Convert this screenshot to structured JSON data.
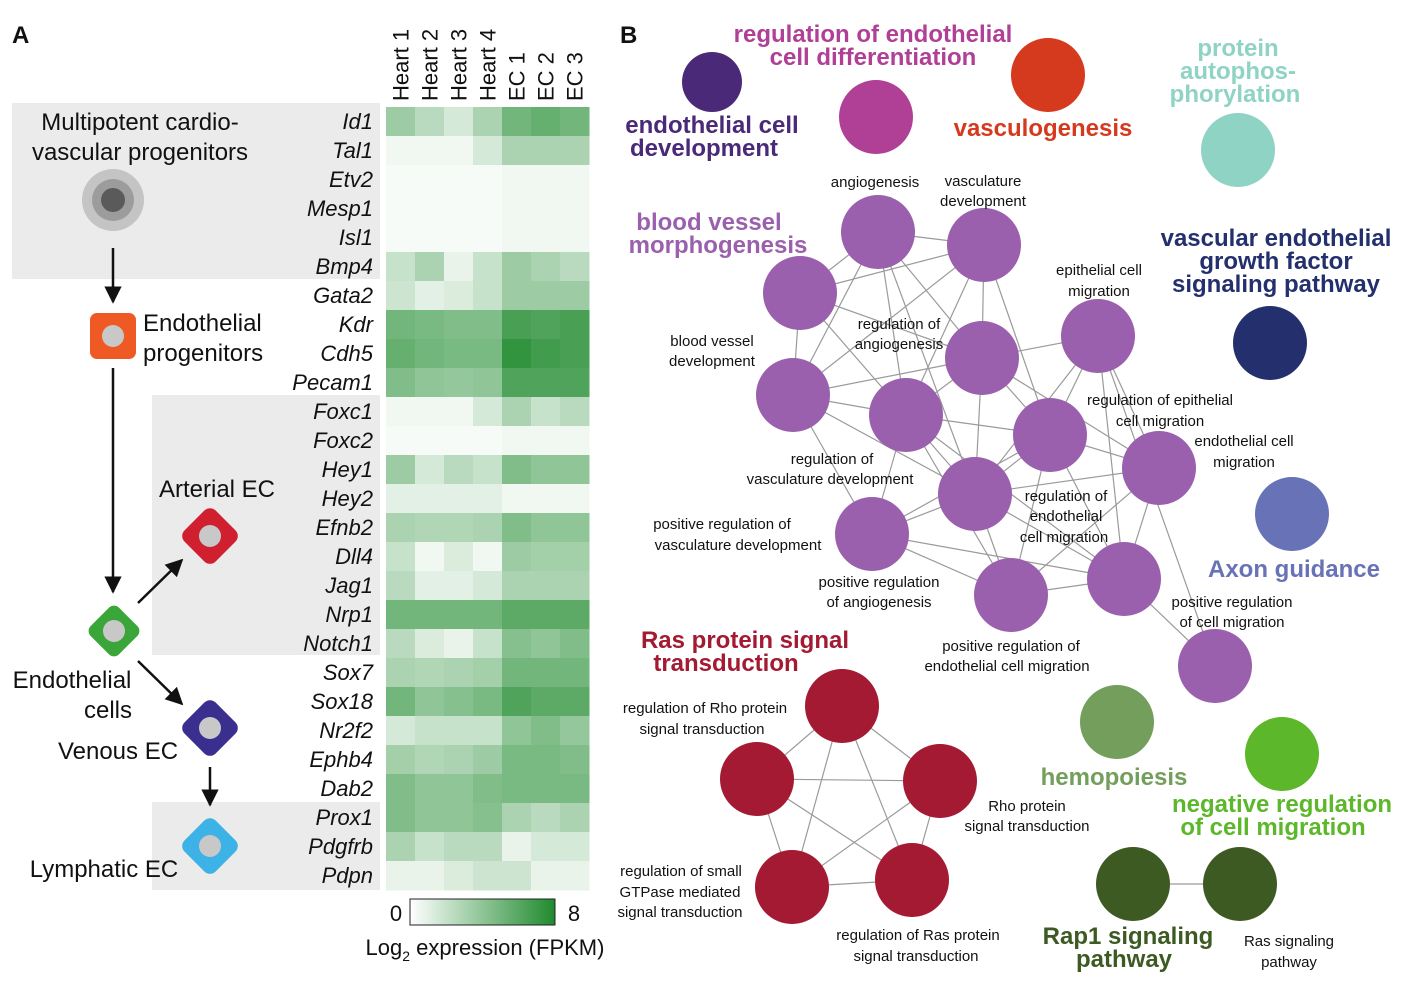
{
  "panels": {
    "a": "A",
    "b": "B"
  },
  "lineage": {
    "multipotent": [
      "Multipotent cardio-",
      "vascular progenitors"
    ],
    "endothelial_progenitors": [
      "Endothelial",
      "progenitors"
    ],
    "arterial": "Arterial EC",
    "endothelial_cells": [
      "Endothelial",
      "cells"
    ],
    "venous": "Venous EC",
    "lymphatic": "Lymphatic EC",
    "colors": {
      "multipotent": "#8a8a8a",
      "progenitor": "#ef5a24",
      "endothelial": "#3aa63a",
      "arterial": "#d0202f",
      "venous": "#3a2f8f",
      "lymphatic": "#3db2e6"
    }
  },
  "chart_data": {
    "type": "heatmap",
    "columns": [
      "Heart 1",
      "Heart 2",
      "Heart 3",
      "Heart 4",
      "EC 1",
      "EC 2",
      "EC 3"
    ],
    "rows": [
      "Id1",
      "Tal1",
      "Etv2",
      "Mesp1",
      "Isl1",
      "Bmp4",
      "Gata2",
      "Kdr",
      "Cdh5",
      "Pecam1",
      "Foxc1",
      "Foxc2",
      "Hey1",
      "Hey2",
      "Efnb2",
      "Dll4",
      "Jag1",
      "Nrp1",
      "Notch1",
      "Sox7",
      "Sox18",
      "Nr2f2",
      "Ephb4",
      "Dab2",
      "Prox1",
      "Pdgfrb",
      "Pdpn"
    ],
    "values": [
      [
        3.5,
        2.5,
        1.5,
        3.0,
        5.0,
        5.5,
        5.0
      ],
      [
        0.5,
        0.5,
        0.5,
        1.5,
        3.0,
        3.0,
        3.0
      ],
      [
        0.3,
        0.3,
        0.3,
        0.3,
        0.5,
        0.5,
        0.5
      ],
      [
        0.3,
        0.3,
        0.3,
        0.3,
        0.5,
        0.5,
        0.5
      ],
      [
        0.3,
        0.3,
        0.3,
        0.3,
        0.5,
        0.5,
        0.5
      ],
      [
        2.0,
        3.0,
        0.8,
        2.0,
        3.5,
        3.0,
        2.5
      ],
      [
        1.8,
        1.0,
        1.3,
        2.0,
        3.5,
        3.5,
        3.5
      ],
      [
        5.0,
        4.8,
        4.5,
        4.5,
        6.5,
        6.3,
        6.5
      ],
      [
        5.5,
        5.0,
        4.8,
        4.8,
        7.3,
        6.8,
        6.5
      ],
      [
        4.5,
        4.0,
        3.8,
        4.0,
        6.3,
        6.3,
        6.3
      ],
      [
        0.5,
        0.5,
        0.5,
        1.5,
        3.0,
        2.0,
        2.5
      ],
      [
        0.3,
        0.3,
        0.3,
        0.3,
        0.5,
        0.5,
        0.5
      ],
      [
        3.5,
        1.5,
        2.5,
        2.0,
        4.5,
        4.0,
        4.0
      ],
      [
        1.0,
        1.0,
        1.0,
        1.0,
        0.5,
        0.5,
        0.5
      ],
      [
        3.0,
        2.8,
        2.8,
        3.0,
        4.5,
        4.0,
        4.0
      ],
      [
        2.0,
        0.5,
        1.3,
        0.5,
        3.5,
        3.3,
        3.3
      ],
      [
        2.5,
        1.0,
        1.0,
        1.5,
        3.0,
        3.0,
        3.0
      ],
      [
        5.0,
        5.0,
        5.0,
        5.0,
        5.8,
        5.8,
        5.8
      ],
      [
        2.5,
        1.3,
        0.8,
        2.0,
        4.3,
        4.0,
        4.5
      ],
      [
        3.0,
        2.8,
        3.0,
        3.3,
        5.0,
        5.0,
        5.0
      ],
      [
        5.0,
        4.0,
        4.3,
        4.8,
        6.3,
        5.8,
        5.8
      ],
      [
        1.5,
        2.0,
        2.0,
        2.0,
        4.0,
        4.5,
        3.8
      ],
      [
        3.3,
        2.8,
        3.0,
        3.5,
        4.8,
        4.8,
        4.5
      ],
      [
        4.5,
        4.0,
        4.0,
        4.5,
        4.8,
        4.8,
        4.8
      ],
      [
        4.5,
        4.0,
        4.0,
        4.3,
        3.0,
        2.5,
        3.0
      ],
      [
        3.0,
        2.0,
        2.5,
        2.5,
        0.8,
        1.5,
        1.5
      ],
      [
        0.8,
        0.8,
        1.3,
        1.8,
        1.8,
        0.8,
        0.8
      ]
    ],
    "vmin": 0,
    "vmax": 8,
    "legend_min": "0",
    "legend_max": "8",
    "legend_label_pre": "Log",
    "legend_label_sub": "2",
    "legend_label_post": " expression (FPKM)",
    "colors": {
      "low": "#ffffff",
      "high": "#1f8a2e"
    }
  },
  "network": {
    "cluster_labels": {
      "regulation_endothelial_differentiation": [
        "regulation of endothelial",
        "cell differentiation"
      ],
      "endothelial_cell_development": [
        "endothelial cell",
        "development"
      ],
      "vasculogenesis": [
        "vasculogenesis"
      ],
      "protein_autophosphorylation": [
        "protein",
        "autophos-",
        "phorylation"
      ],
      "blood_vessel_morphogenesis": [
        "blood vessel",
        "morphogenesis"
      ],
      "vegf_signaling": [
        "vascular endothelial",
        "growth factor",
        "signaling pathway"
      ],
      "axon_guidance": [
        "Axon guidance"
      ],
      "ras_signal": [
        "Ras protein signal",
        "transduction"
      ],
      "hemopoiesis": [
        "hemopoiesis"
      ],
      "negative_migration": [
        "negative regulation",
        "of cell migration"
      ],
      "rap1": [
        "Rap1 signaling",
        "pathway"
      ]
    },
    "node_labels": {
      "angiogenesis": [
        "angiogenesis"
      ],
      "vasculature_development": [
        "vasculature",
        "development"
      ],
      "epithelial_cell_migration": [
        "epithelial cell",
        "migration"
      ],
      "regulation_of_angiogenesis": [
        "regulation of",
        "angiogenesis"
      ],
      "blood_vessel_development": [
        "blood vessel",
        "development"
      ],
      "regulation_epithelial_migration": [
        "regulation of epithelial",
        "cell migration"
      ],
      "endothelial_cell_migration": [
        "endothelial cell",
        "migration"
      ],
      "regulation_vasculature_development": [
        "regulation of",
        "vasculature development"
      ],
      "regulation_endothelial_migration": [
        "regulation of",
        "endothelial",
        "cell migration"
      ],
      "positive_regulation_vasculature": [
        "positive regulation of",
        "vasculature development"
      ],
      "positive_regulation_angiogenesis": [
        "positive regulation",
        "of angiogenesis"
      ],
      "positive_regulation_cell_migration": [
        "positive regulation",
        "of cell migration"
      ],
      "positive_regulation_endothelial_migration": [
        "positive regulation of",
        "endothelial cell migration"
      ],
      "regulation_rho": [
        "regulation of Rho protein",
        "signal transduction"
      ],
      "rho_signal": [
        "Rho protein",
        "signal transduction"
      ],
      "regulation_small_gtpase": [
        "regulation of small",
        "GTPase mediated",
        "signal transduction"
      ],
      "regulation_ras": [
        "regulation of Ras protein",
        "signal transduction"
      ],
      "ras_signaling_pathway": [
        "Ras signaling",
        "pathway"
      ]
    },
    "colors": {
      "dark_purple": "#4a2a78",
      "magenta": "#b03f96",
      "orange_red": "#d63a1e",
      "teal": "#8fd3c4",
      "purple": "#9a60ad",
      "navy": "#24306e",
      "periwinkle": "#6872b6",
      "crimson": "#a31a32",
      "sage": "#739e5c",
      "lime": "#5cb82a",
      "olive": "#3d5a22",
      "edge": "#9a9a9a"
    }
  }
}
